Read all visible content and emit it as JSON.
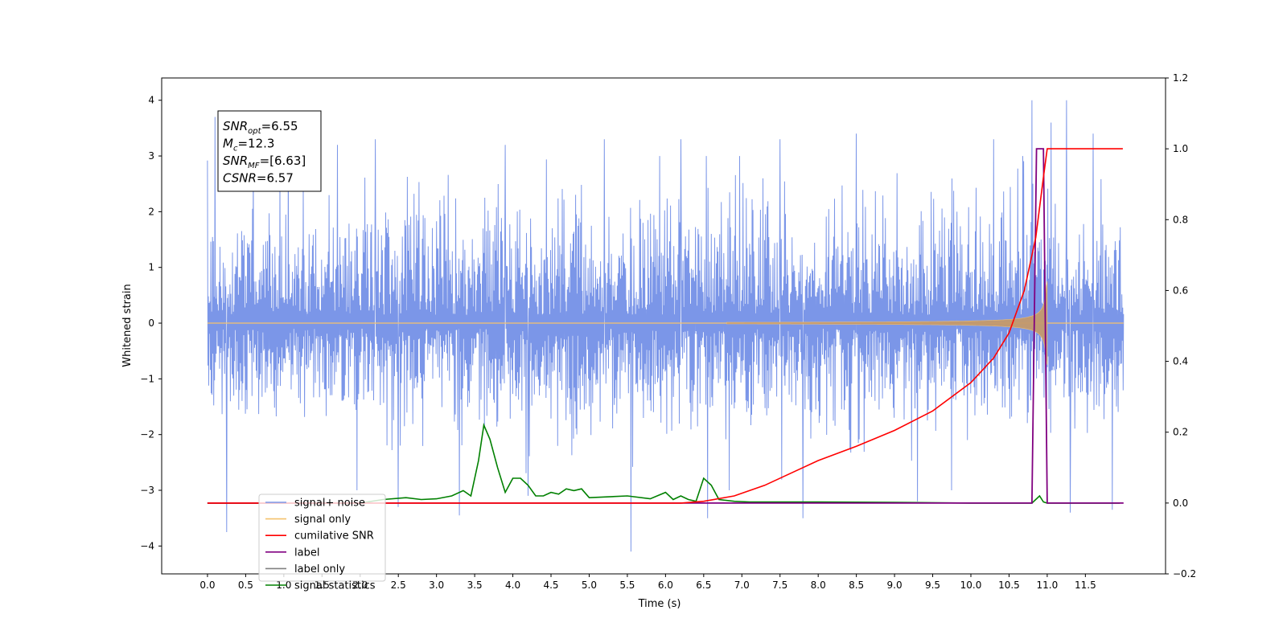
{
  "chart_data": {
    "type": "line",
    "xlabel": "Time (s)",
    "ylabel": "Whitened strain",
    "xlim": [
      -0.6,
      12.55
    ],
    "ylim": [
      -4.5,
      4.4
    ],
    "y2lim": [
      -0.2,
      1.2
    ],
    "x_ticks": [
      0.0,
      0.5,
      1.0,
      1.5,
      2.0,
      2.5,
      3.0,
      3.5,
      4.0,
      4.5,
      5.0,
      5.5,
      6.0,
      6.5,
      7.0,
      7.5,
      8.0,
      8.5,
      9.0,
      9.5,
      10.0,
      10.5,
      11.0,
      11.5
    ],
    "x_tick_labels": [
      "0.0",
      "0.5",
      "1.0",
      "1.5",
      "2.0",
      "2.5",
      "3.0",
      "3.5",
      "4.0",
      "4.5",
      "5.0",
      "5.5",
      "6.0",
      "6.5",
      "7.0",
      "7.5",
      "8.0",
      "8.5",
      "9.0",
      "9.5",
      "10.0",
      "10.5",
      "11.0",
      "11.5"
    ],
    "y_ticks": [
      -4,
      -3,
      -2,
      -1,
      0,
      1,
      2,
      3,
      4
    ],
    "y_tick_labels": [
      "−4",
      "−3",
      "−2",
      "−1",
      "0",
      "1",
      "2",
      "3",
      "4"
    ],
    "y2_ticks": [
      -0.2,
      0.0,
      0.2,
      0.4,
      0.6,
      0.8,
      1.0,
      1.2
    ],
    "y2_tick_labels": [
      "−0.2",
      "0.0",
      "0.2",
      "0.4",
      "0.6",
      "0.8",
      "1.0",
      "1.2"
    ],
    "grid": false,
    "legend_placement": "lower-left",
    "colors": {
      "noise": "#7b96e8",
      "signal": "#f5c16c",
      "chirp_fill": "#c49a6c",
      "csnr": "#ff0000",
      "label": "#800080",
      "stats": "#008000"
    },
    "annotation": {
      "lines": [
        {
          "base": "SNR",
          "sub": "opt",
          "rest": "=6.55"
        },
        {
          "base": "M",
          "sub": "c",
          "rest": "=12.3"
        },
        {
          "base": "SNR",
          "sub": "MF",
          "rest": "=[6.63]"
        },
        {
          "base": "CSNR",
          "sub": "",
          "rest": "=6.57"
        }
      ]
    },
    "noise_envelope": {
      "x_start": 0.0,
      "x_end": 12.0,
      "typical_upper": 2.3,
      "typical_lower": -2.0,
      "spikes": [
        {
          "x": 0.1,
          "y": 3.7
        },
        {
          "x": 0.25,
          "y": -3.75
        },
        {
          "x": 0.6,
          "y": 2.9
        },
        {
          "x": 1.7,
          "y": 3.2
        },
        {
          "x": 2.2,
          "y": 3.3
        },
        {
          "x": 2.5,
          "y": -3.3
        },
        {
          "x": 3.3,
          "y": -3.45
        },
        {
          "x": 3.9,
          "y": 3.2
        },
        {
          "x": 4.2,
          "y": -3.1
        },
        {
          "x": 5.2,
          "y": 3.3
        },
        {
          "x": 5.55,
          "y": -4.1
        },
        {
          "x": 6.2,
          "y": 3.3
        },
        {
          "x": 6.55,
          "y": -3.5
        },
        {
          "x": 7.5,
          "y": 3.3
        },
        {
          "x": 7.8,
          "y": -3.5
        },
        {
          "x": 8.5,
          "y": 3.4
        },
        {
          "x": 9.3,
          "y": -3.2
        },
        {
          "x": 10.3,
          "y": 3.3
        },
        {
          "x": 10.8,
          "y": 4.0
        },
        {
          "x": 11.05,
          "y": 3.6
        },
        {
          "x": 11.25,
          "y": 4.0
        },
        {
          "x": 11.3,
          "y": -3.4
        },
        {
          "x": 11.6,
          "y": 3.4
        },
        {
          "x": 11.85,
          "y": -3.35
        }
      ]
    },
    "chirp": {
      "start_x": 6.8,
      "peak_x": 10.95,
      "peak_amplitude": 0.85
    },
    "series": [
      {
        "name": "signal+ noise",
        "axis": "left",
        "color": "#7b96e8"
      },
      {
        "name": "signal only",
        "axis": "left",
        "color": "#f5c16c"
      },
      {
        "name": "cumilative SNR",
        "axis": "right",
        "color": "#ff0000",
        "x": [
          0.0,
          6.2,
          6.5,
          6.9,
          7.3,
          7.7,
          8.0,
          8.5,
          9.0,
          9.5,
          10.0,
          10.3,
          10.5,
          10.7,
          10.85,
          10.95,
          11.0,
          11.5,
          11.99
        ],
        "values": [
          0.0,
          0.0,
          0.005,
          0.02,
          0.05,
          0.09,
          0.12,
          0.16,
          0.205,
          0.26,
          0.34,
          0.41,
          0.48,
          0.6,
          0.75,
          0.92,
          1.0,
          1.0,
          1.0
        ]
      },
      {
        "name": "label",
        "axis": "right",
        "color": "#800080",
        "x": [
          0.0,
          10.8,
          10.86,
          10.95,
          11.0,
          11.02,
          12.0
        ],
        "values": [
          0.0,
          0.0,
          1.0,
          1.0,
          0.0,
          0.0,
          0.0
        ]
      },
      {
        "name": "label only",
        "axis": "right",
        "color": "#808080"
      },
      {
        "name": "signal statistics",
        "axis": "right",
        "color": "#008000",
        "x": [
          0.0,
          2.0,
          2.3,
          2.6,
          2.8,
          3.0,
          3.2,
          3.35,
          3.45,
          3.55,
          3.62,
          3.7,
          3.8,
          3.9,
          4.0,
          4.1,
          4.2,
          4.3,
          4.4,
          4.5,
          4.6,
          4.7,
          4.8,
          4.9,
          5.0,
          5.5,
          5.8,
          6.0,
          6.1,
          6.2,
          6.3,
          6.4,
          6.5,
          6.6,
          6.7,
          6.9,
          7.1,
          7.5,
          8.0,
          9.0,
          10.0,
          10.8,
          10.9,
          10.95,
          11.0,
          11.95
        ],
        "values": [
          0.0,
          0.0,
          0.01,
          0.015,
          0.01,
          0.012,
          0.02,
          0.035,
          0.02,
          0.12,
          0.22,
          0.18,
          0.1,
          0.03,
          0.07,
          0.07,
          0.05,
          0.02,
          0.02,
          0.03,
          0.025,
          0.04,
          0.035,
          0.04,
          0.015,
          0.02,
          0.012,
          0.03,
          0.01,
          0.02,
          0.01,
          0.005,
          0.07,
          0.05,
          0.01,
          0.005,
          0.003,
          0.003,
          0.003,
          0.002,
          0.0,
          0.0,
          0.02,
          0.003,
          0.0,
          0.0
        ]
      }
    ]
  }
}
